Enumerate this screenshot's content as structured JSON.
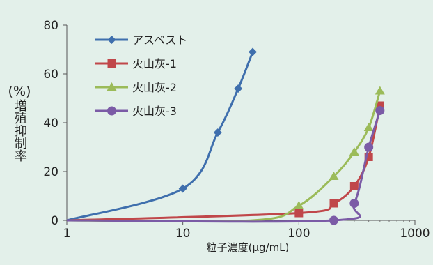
{
  "chart_data": {
    "type": "line",
    "x_scale": "log",
    "xlim": [
      1,
      1000
    ],
    "ylim": [
      0,
      80
    ],
    "x_ticks": [
      "1",
      "10",
      "100",
      "1000"
    ],
    "y_ticks": [
      "0",
      "20",
      "40",
      "60",
      "80"
    ],
    "xlabel": "粒子濃度(μg/mL)",
    "ylabel": "増殖抑制率",
    "ylabel_unit": "(%)",
    "grid": false,
    "legend_position": "top-left",
    "series": [
      {
        "name": "アスベスト",
        "color": "#3f6fad",
        "marker": "diamond",
        "x": [
          1,
          10,
          20,
          30,
          40
        ],
        "y": [
          0,
          13,
          36,
          54,
          69
        ]
      },
      {
        "name": "火山灰-1",
        "color": "#c0474a",
        "marker": "square",
        "x": [
          1,
          100,
          200,
          300,
          400,
          500
        ],
        "y": [
          0,
          3,
          7,
          14,
          26,
          47
        ]
      },
      {
        "name": "火山灰-2",
        "color": "#9bbb59",
        "marker": "triangle",
        "x": [
          1,
          40,
          100,
          200,
          300,
          400,
          500
        ],
        "y": [
          0,
          0,
          6,
          18,
          28,
          38,
          53
        ]
      },
      {
        "name": "火山灰-3",
        "color": "#7b5ba6",
        "marker": "circle",
        "x": [
          1,
          200,
          300,
          400,
          500
        ],
        "y": [
          0,
          0,
          7,
          30,
          45
        ]
      }
    ]
  }
}
